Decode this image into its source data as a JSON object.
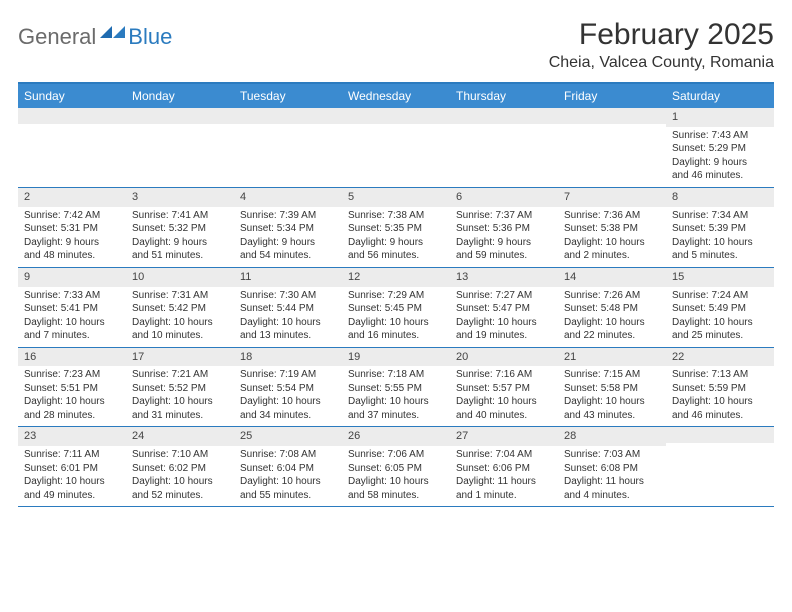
{
  "logo": {
    "general": "General",
    "blue": "Blue"
  },
  "title": "February 2025",
  "location": "Cheia, Valcea County, Romania",
  "colors": {
    "header_bg": "#3b8bd0",
    "header_text": "#ffffff",
    "border": "#2b7bbf",
    "daynum_bg": "#ececec",
    "text": "#333333",
    "logo_gray": "#6b6b6b",
    "logo_blue": "#2b7bbf",
    "background": "#ffffff"
  },
  "fonts": {
    "title_size": 30,
    "location_size": 16,
    "dayheader_size": 12,
    "daynum_size": 11,
    "body_size": 10
  },
  "day_names": [
    "Sunday",
    "Monday",
    "Tuesday",
    "Wednesday",
    "Thursday",
    "Friday",
    "Saturday"
  ],
  "weeks": [
    [
      {
        "n": "",
        "sunrise": "",
        "sunset": "",
        "daylight1": "",
        "daylight2": ""
      },
      {
        "n": "",
        "sunrise": "",
        "sunset": "",
        "daylight1": "",
        "daylight2": ""
      },
      {
        "n": "",
        "sunrise": "",
        "sunset": "",
        "daylight1": "",
        "daylight2": ""
      },
      {
        "n": "",
        "sunrise": "",
        "sunset": "",
        "daylight1": "",
        "daylight2": ""
      },
      {
        "n": "",
        "sunrise": "",
        "sunset": "",
        "daylight1": "",
        "daylight2": ""
      },
      {
        "n": "",
        "sunrise": "",
        "sunset": "",
        "daylight1": "",
        "daylight2": ""
      },
      {
        "n": "1",
        "sunrise": "Sunrise: 7:43 AM",
        "sunset": "Sunset: 5:29 PM",
        "daylight1": "Daylight: 9 hours",
        "daylight2": "and 46 minutes."
      }
    ],
    [
      {
        "n": "2",
        "sunrise": "Sunrise: 7:42 AM",
        "sunset": "Sunset: 5:31 PM",
        "daylight1": "Daylight: 9 hours",
        "daylight2": "and 48 minutes."
      },
      {
        "n": "3",
        "sunrise": "Sunrise: 7:41 AM",
        "sunset": "Sunset: 5:32 PM",
        "daylight1": "Daylight: 9 hours",
        "daylight2": "and 51 minutes."
      },
      {
        "n": "4",
        "sunrise": "Sunrise: 7:39 AM",
        "sunset": "Sunset: 5:34 PM",
        "daylight1": "Daylight: 9 hours",
        "daylight2": "and 54 minutes."
      },
      {
        "n": "5",
        "sunrise": "Sunrise: 7:38 AM",
        "sunset": "Sunset: 5:35 PM",
        "daylight1": "Daylight: 9 hours",
        "daylight2": "and 56 minutes."
      },
      {
        "n": "6",
        "sunrise": "Sunrise: 7:37 AM",
        "sunset": "Sunset: 5:36 PM",
        "daylight1": "Daylight: 9 hours",
        "daylight2": "and 59 minutes."
      },
      {
        "n": "7",
        "sunrise": "Sunrise: 7:36 AM",
        "sunset": "Sunset: 5:38 PM",
        "daylight1": "Daylight: 10 hours",
        "daylight2": "and 2 minutes."
      },
      {
        "n": "8",
        "sunrise": "Sunrise: 7:34 AM",
        "sunset": "Sunset: 5:39 PM",
        "daylight1": "Daylight: 10 hours",
        "daylight2": "and 5 minutes."
      }
    ],
    [
      {
        "n": "9",
        "sunrise": "Sunrise: 7:33 AM",
        "sunset": "Sunset: 5:41 PM",
        "daylight1": "Daylight: 10 hours",
        "daylight2": "and 7 minutes."
      },
      {
        "n": "10",
        "sunrise": "Sunrise: 7:31 AM",
        "sunset": "Sunset: 5:42 PM",
        "daylight1": "Daylight: 10 hours",
        "daylight2": "and 10 minutes."
      },
      {
        "n": "11",
        "sunrise": "Sunrise: 7:30 AM",
        "sunset": "Sunset: 5:44 PM",
        "daylight1": "Daylight: 10 hours",
        "daylight2": "and 13 minutes."
      },
      {
        "n": "12",
        "sunrise": "Sunrise: 7:29 AM",
        "sunset": "Sunset: 5:45 PM",
        "daylight1": "Daylight: 10 hours",
        "daylight2": "and 16 minutes."
      },
      {
        "n": "13",
        "sunrise": "Sunrise: 7:27 AM",
        "sunset": "Sunset: 5:47 PM",
        "daylight1": "Daylight: 10 hours",
        "daylight2": "and 19 minutes."
      },
      {
        "n": "14",
        "sunrise": "Sunrise: 7:26 AM",
        "sunset": "Sunset: 5:48 PM",
        "daylight1": "Daylight: 10 hours",
        "daylight2": "and 22 minutes."
      },
      {
        "n": "15",
        "sunrise": "Sunrise: 7:24 AM",
        "sunset": "Sunset: 5:49 PM",
        "daylight1": "Daylight: 10 hours",
        "daylight2": "and 25 minutes."
      }
    ],
    [
      {
        "n": "16",
        "sunrise": "Sunrise: 7:23 AM",
        "sunset": "Sunset: 5:51 PM",
        "daylight1": "Daylight: 10 hours",
        "daylight2": "and 28 minutes."
      },
      {
        "n": "17",
        "sunrise": "Sunrise: 7:21 AM",
        "sunset": "Sunset: 5:52 PM",
        "daylight1": "Daylight: 10 hours",
        "daylight2": "and 31 minutes."
      },
      {
        "n": "18",
        "sunrise": "Sunrise: 7:19 AM",
        "sunset": "Sunset: 5:54 PM",
        "daylight1": "Daylight: 10 hours",
        "daylight2": "and 34 minutes."
      },
      {
        "n": "19",
        "sunrise": "Sunrise: 7:18 AM",
        "sunset": "Sunset: 5:55 PM",
        "daylight1": "Daylight: 10 hours",
        "daylight2": "and 37 minutes."
      },
      {
        "n": "20",
        "sunrise": "Sunrise: 7:16 AM",
        "sunset": "Sunset: 5:57 PM",
        "daylight1": "Daylight: 10 hours",
        "daylight2": "and 40 minutes."
      },
      {
        "n": "21",
        "sunrise": "Sunrise: 7:15 AM",
        "sunset": "Sunset: 5:58 PM",
        "daylight1": "Daylight: 10 hours",
        "daylight2": "and 43 minutes."
      },
      {
        "n": "22",
        "sunrise": "Sunrise: 7:13 AM",
        "sunset": "Sunset: 5:59 PM",
        "daylight1": "Daylight: 10 hours",
        "daylight2": "and 46 minutes."
      }
    ],
    [
      {
        "n": "23",
        "sunrise": "Sunrise: 7:11 AM",
        "sunset": "Sunset: 6:01 PM",
        "daylight1": "Daylight: 10 hours",
        "daylight2": "and 49 minutes."
      },
      {
        "n": "24",
        "sunrise": "Sunrise: 7:10 AM",
        "sunset": "Sunset: 6:02 PM",
        "daylight1": "Daylight: 10 hours",
        "daylight2": "and 52 minutes."
      },
      {
        "n": "25",
        "sunrise": "Sunrise: 7:08 AM",
        "sunset": "Sunset: 6:04 PM",
        "daylight1": "Daylight: 10 hours",
        "daylight2": "and 55 minutes."
      },
      {
        "n": "26",
        "sunrise": "Sunrise: 7:06 AM",
        "sunset": "Sunset: 6:05 PM",
        "daylight1": "Daylight: 10 hours",
        "daylight2": "and 58 minutes."
      },
      {
        "n": "27",
        "sunrise": "Sunrise: 7:04 AM",
        "sunset": "Sunset: 6:06 PM",
        "daylight1": "Daylight: 11 hours",
        "daylight2": "and 1 minute."
      },
      {
        "n": "28",
        "sunrise": "Sunrise: 7:03 AM",
        "sunset": "Sunset: 6:08 PM",
        "daylight1": "Daylight: 11 hours",
        "daylight2": "and 4 minutes."
      },
      {
        "n": "",
        "sunrise": "",
        "sunset": "",
        "daylight1": "",
        "daylight2": ""
      }
    ]
  ]
}
